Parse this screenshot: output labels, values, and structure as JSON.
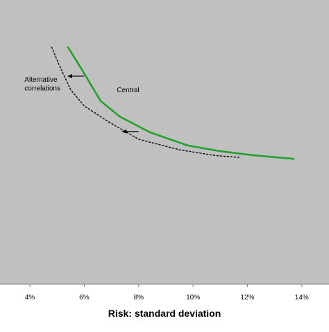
{
  "chart_data": {
    "type": "line",
    "title": "",
    "xlabel": "Risk: standard deviation",
    "ylabel": "",
    "xlim": [
      2.9,
      15.0
    ],
    "ylim": [
      0,
      1
    ],
    "x_ticks": [
      4,
      6,
      8,
      10,
      12,
      14
    ],
    "x_tick_labels": [
      "4%",
      "6%",
      "8%",
      "10%",
      "12%",
      "14%"
    ],
    "grid": false,
    "plot_background": "#c0c0c0",
    "series": [
      {
        "name": "Central",
        "color": "#22a02a",
        "style": "solid",
        "points": [
          [
            5.4,
            0.834
          ],
          [
            5.9,
            0.757
          ],
          [
            6.6,
            0.645
          ],
          [
            7.3,
            0.59
          ],
          [
            8.4,
            0.535
          ],
          [
            9.8,
            0.488
          ],
          [
            11.0,
            0.468
          ],
          [
            12.2,
            0.454
          ],
          [
            13.7,
            0.441
          ]
        ]
      },
      {
        "name": "Alternative correlations",
        "color": "#111111",
        "style": "dotted",
        "points": [
          [
            4.8,
            0.834
          ],
          [
            5.1,
            0.766
          ],
          [
            5.5,
            0.684
          ],
          [
            6.0,
            0.627
          ],
          [
            6.9,
            0.571
          ],
          [
            8.0,
            0.51
          ],
          [
            9.5,
            0.473
          ],
          [
            10.8,
            0.453
          ],
          [
            11.7,
            0.446
          ]
        ]
      }
    ],
    "annotations": [
      {
        "text": "Central",
        "x": 7.2,
        "y": 0.676
      },
      {
        "text": "Alternative correlations",
        "lines": [
          "Alternative",
          "correlations"
        ],
        "x": 3.8,
        "y": 0.712
      }
    ],
    "arrows": [
      {
        "from": [
          6.0,
          0.732
        ],
        "to": [
          5.4,
          0.732
        ]
      },
      {
        "from": [
          8.0,
          0.537
        ],
        "to": [
          7.4,
          0.537
        ]
      }
    ]
  }
}
